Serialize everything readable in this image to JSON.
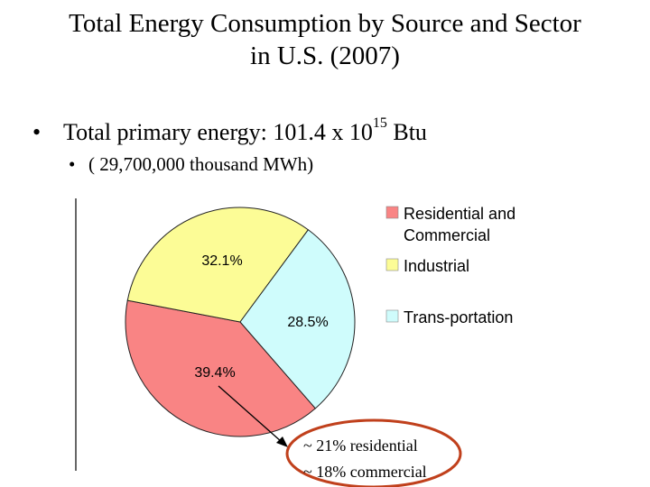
{
  "title": {
    "line1": "Total Energy Consumption by Source and Sector",
    "line2": "in U.S. (2007)"
  },
  "bullets": {
    "primary_prefix": "Total primary energy: 101.4 x 10",
    "primary_exponent": "15",
    "primary_suffix": " Btu",
    "secondary": "( 29,700,000 thousand MWh)"
  },
  "chart_data": {
    "type": "pie",
    "title": "",
    "slices": [
      {
        "label": "Residential and Commercial",
        "value": 39.4,
        "value_label": "39.4%",
        "color": "#f98484"
      },
      {
        "label": "Industrial",
        "value": 32.1,
        "value_label": "32.1%",
        "color": "#fcfc96"
      },
      {
        "label": "Trans-portation",
        "value": 28.5,
        "value_label": "28.5%",
        "color": "#cffcfc"
      }
    ],
    "legend": {
      "placement": "right",
      "entries": [
        {
          "lines": [
            "Residential and",
            "Commercial"
          ],
          "color": "#f98484"
        },
        {
          "lines": [
            "Industrial"
          ],
          "color": "#fcfc96"
        },
        {
          "lines": [
            "Trans-portation"
          ],
          "color": "#cffcfc"
        }
      ]
    }
  },
  "annotation": {
    "line1": "~ 21% residential",
    "line2": "~ 18% commercial",
    "circle_color": "#c0401c"
  }
}
